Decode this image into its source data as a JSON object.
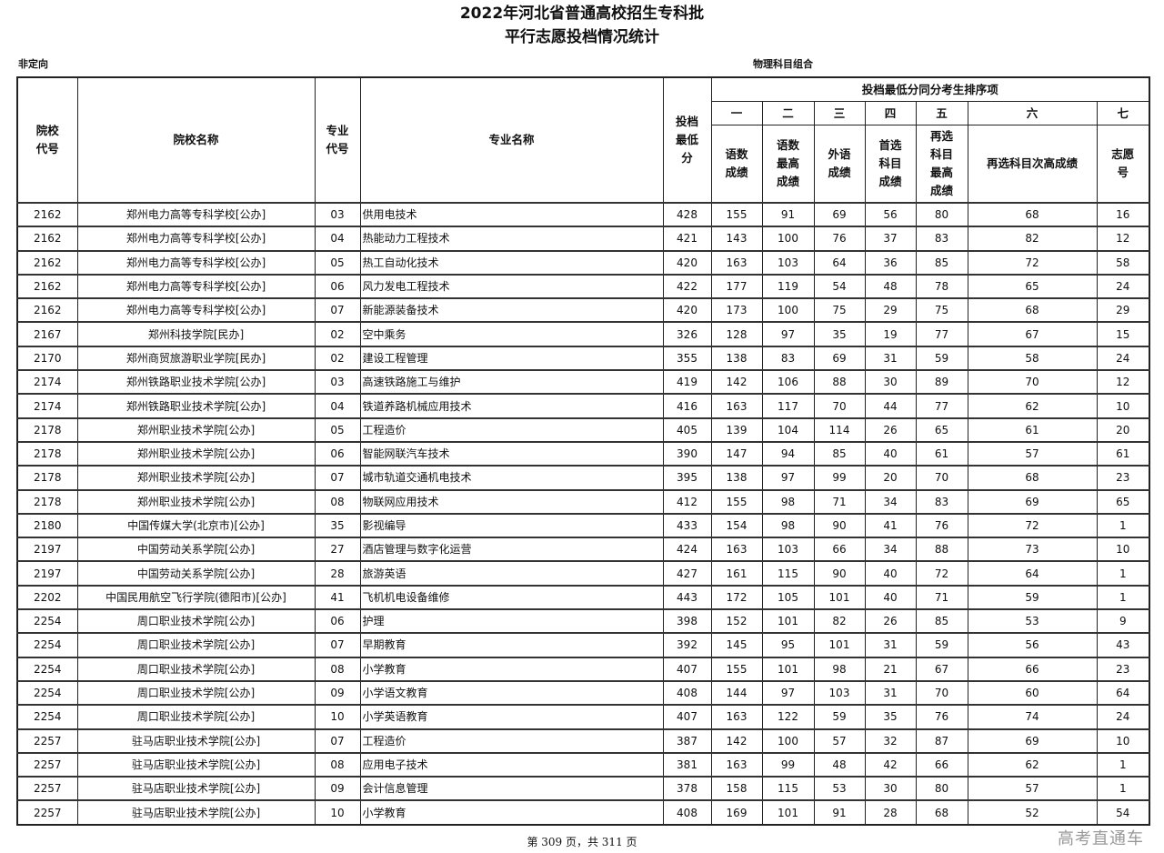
{
  "title_line1": "2022年河北省普通高校招生专科批",
  "title_line2": "平行志愿投档情况统计",
  "sub_left": "非定向",
  "sub_mid": "物理科目组合",
  "headers": {
    "school_code": "院校代号",
    "school_name": "院校名称",
    "major_code": "专业代号",
    "major_name": "专业名称",
    "min_score": "投档最低分",
    "tiebreak_group": "投档最低分同分考生排序项",
    "orders": [
      "一",
      "二",
      "三",
      "四",
      "五",
      "六",
      "七"
    ],
    "items": [
      "语数成绩",
      "语数最高成绩",
      "外语成绩",
      "首选科目成绩",
      "再选科目最高成绩",
      "再选科目次高成绩",
      "志愿号"
    ]
  },
  "rows": [
    [
      "2162",
      "郑州电力高等专科学校[公办]",
      "03",
      "供用电技术",
      "428",
      "155",
      "91",
      "69",
      "56",
      "80",
      "68",
      "16"
    ],
    [
      "2162",
      "郑州电力高等专科学校[公办]",
      "04",
      "热能动力工程技术",
      "421",
      "143",
      "100",
      "76",
      "37",
      "83",
      "82",
      "12"
    ],
    [
      "2162",
      "郑州电力高等专科学校[公办]",
      "05",
      "热工自动化技术",
      "420",
      "163",
      "103",
      "64",
      "36",
      "85",
      "72",
      "58"
    ],
    [
      "2162",
      "郑州电力高等专科学校[公办]",
      "06",
      "风力发电工程技术",
      "422",
      "177",
      "119",
      "54",
      "48",
      "78",
      "65",
      "24"
    ],
    [
      "2162",
      "郑州电力高等专科学校[公办]",
      "07",
      "新能源装备技术",
      "420",
      "173",
      "100",
      "75",
      "29",
      "75",
      "68",
      "29"
    ],
    [
      "2167",
      "郑州科技学院[民办]",
      "02",
      "空中乘务",
      "326",
      "128",
      "97",
      "35",
      "19",
      "77",
      "67",
      "15"
    ],
    [
      "2170",
      "郑州商贸旅游职业学院[民办]",
      "02",
      "建设工程管理",
      "355",
      "138",
      "83",
      "69",
      "31",
      "59",
      "58",
      "24"
    ],
    [
      "2174",
      "郑州铁路职业技术学院[公办]",
      "03",
      "高速铁路施工与维护",
      "419",
      "142",
      "106",
      "88",
      "30",
      "89",
      "70",
      "12"
    ],
    [
      "2174",
      "郑州铁路职业技术学院[公办]",
      "04",
      "铁道养路机械应用技术",
      "416",
      "163",
      "117",
      "70",
      "44",
      "77",
      "62",
      "10"
    ],
    [
      "2178",
      "郑州职业技术学院[公办]",
      "05",
      "工程造价",
      "405",
      "139",
      "104",
      "114",
      "26",
      "65",
      "61",
      "20"
    ],
    [
      "2178",
      "郑州职业技术学院[公办]",
      "06",
      "智能网联汽车技术",
      "390",
      "147",
      "94",
      "85",
      "40",
      "61",
      "57",
      "61"
    ],
    [
      "2178",
      "郑州职业技术学院[公办]",
      "07",
      "城市轨道交通机电技术",
      "395",
      "138",
      "97",
      "99",
      "20",
      "70",
      "68",
      "23"
    ],
    [
      "2178",
      "郑州职业技术学院[公办]",
      "08",
      "物联网应用技术",
      "412",
      "155",
      "98",
      "71",
      "34",
      "83",
      "69",
      "65"
    ],
    [
      "2180",
      "中国传媒大学(北京市)[公办]",
      "35",
      "影视编导",
      "433",
      "154",
      "98",
      "90",
      "41",
      "76",
      "72",
      "1"
    ],
    [
      "2197",
      "中国劳动关系学院[公办]",
      "27",
      "酒店管理与数字化运营",
      "424",
      "163",
      "103",
      "66",
      "34",
      "88",
      "73",
      "10"
    ],
    [
      "2197",
      "中国劳动关系学院[公办]",
      "28",
      "旅游英语",
      "427",
      "161",
      "115",
      "90",
      "40",
      "72",
      "64",
      "1"
    ],
    [
      "2202",
      "中国民用航空飞行学院(德阳市)[公办]",
      "41",
      "飞机机电设备维修",
      "443",
      "172",
      "105",
      "101",
      "40",
      "71",
      "59",
      "1"
    ],
    [
      "2254",
      "周口职业技术学院[公办]",
      "06",
      "护理",
      "398",
      "152",
      "101",
      "82",
      "26",
      "85",
      "53",
      "9"
    ],
    [
      "2254",
      "周口职业技术学院[公办]",
      "07",
      "早期教育",
      "392",
      "145",
      "95",
      "101",
      "31",
      "59",
      "56",
      "43"
    ],
    [
      "2254",
      "周口职业技术学院[公办]",
      "08",
      "小学教育",
      "407",
      "155",
      "101",
      "98",
      "21",
      "67",
      "66",
      "23"
    ],
    [
      "2254",
      "周口职业技术学院[公办]",
      "09",
      "小学语文教育",
      "408",
      "144",
      "97",
      "103",
      "31",
      "70",
      "60",
      "64"
    ],
    [
      "2254",
      "周口职业技术学院[公办]",
      "10",
      "小学英语教育",
      "407",
      "163",
      "122",
      "59",
      "35",
      "76",
      "74",
      "24"
    ],
    [
      "2257",
      "驻马店职业技术学院[公办]",
      "07",
      "工程造价",
      "387",
      "142",
      "100",
      "57",
      "32",
      "87",
      "69",
      "10"
    ],
    [
      "2257",
      "驻马店职业技术学院[公办]",
      "08",
      "应用电子技术",
      "381",
      "163",
      "99",
      "48",
      "42",
      "66",
      "62",
      "1"
    ],
    [
      "2257",
      "驻马店职业技术学院[公办]",
      "09",
      "会计信息管理",
      "378",
      "158",
      "115",
      "53",
      "30",
      "80",
      "57",
      "1"
    ],
    [
      "2257",
      "驻马店职业技术学院[公办]",
      "10",
      "小学教育",
      "408",
      "169",
      "101",
      "91",
      "28",
      "68",
      "52",
      "54"
    ]
  ],
  "footer": "第 309 页，共 311 页",
  "watermark": "高考直通车"
}
